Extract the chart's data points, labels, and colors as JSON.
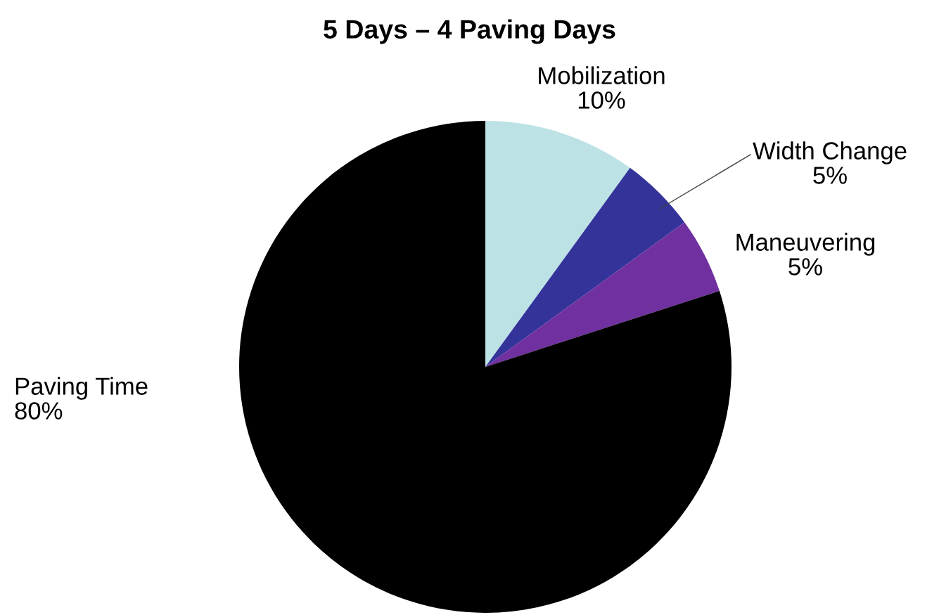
{
  "chart_data": {
    "type": "pie",
    "title": "5 Days – 4 Paving Days",
    "categories": [
      "Mobilization",
      "Width Change",
      "Maneuvering",
      "Paving Time"
    ],
    "values": [
      10,
      5,
      5,
      80
    ],
    "value_labels": [
      "10%",
      "5%",
      "5%",
      "80%"
    ],
    "colors": [
      "#bde2e5",
      "#333399",
      "#7030a0",
      "#000000"
    ],
    "legend": false
  }
}
